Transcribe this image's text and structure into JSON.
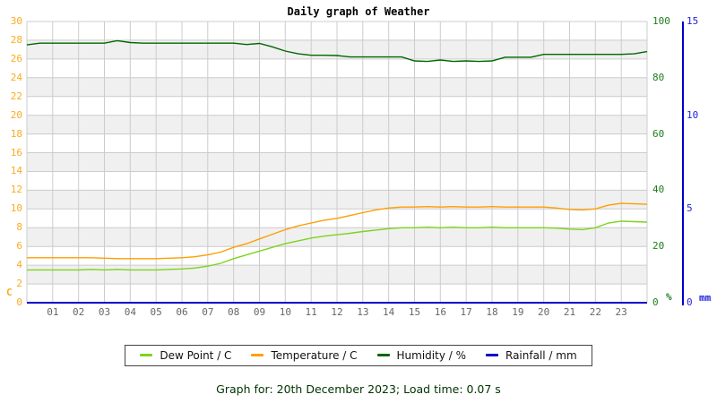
{
  "title": "Daily graph of Weather",
  "caption": "Graph for: 20th December 2023; Load time: 0.07 s",
  "legend": {
    "items": [
      {
        "label": "Dew Point / C",
        "color": "#7cd41c"
      },
      {
        "label": "Temperature / C",
        "color": "#ff9e00"
      },
      {
        "label": "Humidity / %",
        "color": "#006600"
      },
      {
        "label": "Rainfall / mm",
        "color": "#0000cc"
      }
    ]
  },
  "chart_data": {
    "type": "line",
    "title": "Daily graph of Weather",
    "grid": true,
    "band_colors": [
      "#ffffff",
      "#f0f0f0"
    ],
    "gridline_color": "#cccccc",
    "axes": {
      "left": {
        "unit": "C",
        "min": 0,
        "max": 30,
        "ticks": [
          0,
          2,
          4,
          6,
          8,
          10,
          12,
          14,
          16,
          18,
          20,
          22,
          24,
          26,
          28,
          30
        ],
        "label_color": "#fbaa1d"
      },
      "humidity": {
        "unit": "%",
        "min": 0,
        "max": 100,
        "ticks": [
          0,
          20,
          40,
          60,
          80,
          100
        ],
        "label_color": "#1e7e1e"
      },
      "rain": {
        "unit": "mm",
        "min": 0,
        "max": 15,
        "ticks": [
          0,
          5,
          10,
          15
        ],
        "label_color": "#2222dd",
        "axis_color": "#0000cc"
      }
    },
    "x_axis": {
      "hours": 24,
      "tick_labels": [
        "01",
        "02",
        "03",
        "04",
        "05",
        "06",
        "07",
        "08",
        "09",
        "10",
        "11",
        "12",
        "13",
        "14",
        "15",
        "16",
        "17",
        "18",
        "19",
        "20",
        "21",
        "22",
        "23"
      ],
      "label_color": "#666666"
    },
    "x_hours": [
      0,
      0.5,
      1,
      1.5,
      2,
      2.5,
      3,
      3.5,
      4,
      4.5,
      5,
      5.5,
      6,
      6.5,
      7,
      7.5,
      8,
      8.5,
      9,
      9.5,
      10,
      10.5,
      11,
      11.5,
      12,
      12.5,
      13,
      13.5,
      14,
      14.5,
      15,
      15.5,
      16,
      16.5,
      17,
      17.5,
      18,
      18.5,
      19,
      19.5,
      20,
      20.5,
      21,
      21.5,
      22,
      22.5,
      23,
      23.5,
      24
    ],
    "series": [
      {
        "name": "Dew Point / C",
        "axis": "left",
        "color": "#7cd41c",
        "values": [
          3.5,
          3.5,
          3.5,
          3.5,
          3.5,
          3.55,
          3.5,
          3.55,
          3.5,
          3.5,
          3.5,
          3.55,
          3.6,
          3.7,
          3.9,
          4.2,
          4.7,
          5.1,
          5.5,
          5.9,
          6.3,
          6.6,
          6.9,
          7.1,
          7.25,
          7.4,
          7.6,
          7.75,
          7.9,
          8.0,
          8.0,
          8.05,
          8.0,
          8.05,
          8.0,
          8.0,
          8.05,
          8.0,
          8.0,
          8.0,
          8.0,
          7.95,
          7.85,
          7.8,
          8.0,
          8.5,
          8.7,
          8.65,
          8.6
        ]
      },
      {
        "name": "Temperature / C",
        "axis": "left",
        "color": "#ff9e00",
        "values": [
          4.8,
          4.8,
          4.8,
          4.8,
          4.8,
          4.8,
          4.75,
          4.7,
          4.7,
          4.7,
          4.7,
          4.75,
          4.8,
          4.9,
          5.1,
          5.4,
          5.9,
          6.3,
          6.8,
          7.3,
          7.8,
          8.2,
          8.5,
          8.8,
          9.0,
          9.3,
          9.6,
          9.9,
          10.1,
          10.2,
          10.2,
          10.25,
          10.2,
          10.25,
          10.2,
          10.2,
          10.25,
          10.2,
          10.2,
          10.2,
          10.2,
          10.1,
          9.95,
          9.9,
          10.0,
          10.4,
          10.6,
          10.55,
          10.5
        ]
      },
      {
        "name": "Humidity / %",
        "axis": "humidity",
        "color": "#006600",
        "values": [
          91.7,
          92.3,
          92.3,
          92.3,
          92.3,
          92.3,
          92.3,
          93.2,
          92.5,
          92.3,
          92.3,
          92.3,
          92.3,
          92.3,
          92.3,
          92.3,
          92.3,
          91.8,
          92.2,
          91.0,
          89.5,
          88.5,
          88.0,
          88.0,
          87.9,
          87.4,
          87.4,
          87.4,
          87.4,
          87.4,
          86.0,
          85.8,
          86.3,
          85.8,
          86.0,
          85.8,
          86.0,
          87.3,
          87.3,
          87.3,
          88.3,
          88.3,
          88.3,
          88.3,
          88.3,
          88.3,
          88.3,
          88.5,
          89.3
        ]
      },
      {
        "name": "Rainfall / mm",
        "axis": "rain",
        "color": "#0000cc",
        "values": [
          0,
          0,
          0,
          0,
          0,
          0,
          0,
          0,
          0,
          0,
          0,
          0,
          0,
          0,
          0,
          0,
          0,
          0,
          0,
          0,
          0,
          0,
          0,
          0,
          0,
          0,
          0,
          0,
          0,
          0,
          0,
          0,
          0,
          0,
          0,
          0,
          0,
          0,
          0,
          0,
          0,
          0,
          0,
          0,
          0,
          0,
          0,
          0,
          0
        ]
      }
    ]
  }
}
